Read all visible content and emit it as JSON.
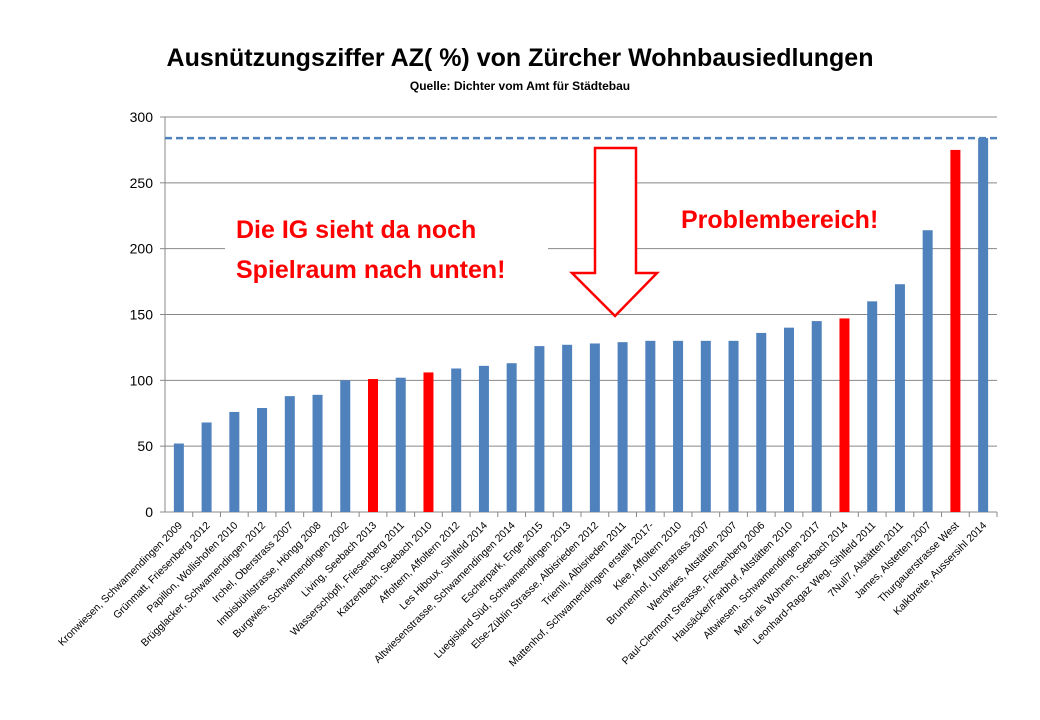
{
  "chart_data": {
    "type": "bar",
    "title": "Ausnützungsziffer AZ( %) von Zürcher Wohnbausiedlungen",
    "subtitle": "Quelle: Dichter vom Amt für Städtebau",
    "ylim": [
      0,
      300
    ],
    "yticks": [
      0,
      50,
      100,
      150,
      200,
      250,
      300
    ],
    "grid": true,
    "categories": [
      "Kronwiesen, Schwamendingen 2009",
      "Grünmatt, Friesenberg 2012",
      "Papillon, Wollishofen 2010",
      "Brügglacker, Schwamendingen 2012",
      "Irchel, Oberstrass 2007",
      "Imbisbühlstrasse, Höngg 2008",
      "Burgwies, Schwamendingen 2002",
      "Living, Seebach 2013",
      "Wasserschöpfi, Friesenberg 2011",
      "Katzenbach, Seebach 2010",
      "Affoltern, Affoltern 2012",
      "Les Hiboux, Sihlfeld 2014",
      "Altwiesenstrasse, Schwamendingen 2014",
      "Escherpark, Enge 2015",
      "Luegisland Süd, Schwamendingen 2013",
      "Else-Züblin Strasse, Albisrieden 2012",
      "Triemli, Albisrieden 2011",
      "Mattenhof, Schwamendingen erstellt 2017-",
      "Klee, Affoltern 2010",
      "Brunnenhof, Unterstrass 2007",
      "Werdwies, Altstätten 2007",
      "Paul-Clermont Sreasse, Friesenberg 2006",
      "Hausäcker/Farbhof, Altstätten 2010",
      "Altwiesen. Schwamendingen 2017",
      "Mehr als Wohnen, Seebach 2014",
      "Leonhard-Ragaz Weg, Sihlfeld 2011",
      "7Null7, Alstätten 2011",
      "James, Alstetten 2007",
      "Thurgauerstrasse West",
      "Kalkbreite, Aussersihl 2014"
    ],
    "values": [
      52,
      68,
      76,
      79,
      88,
      89,
      100,
      101,
      102,
      106,
      109,
      111,
      113,
      126,
      127,
      128,
      129,
      130,
      130,
      130,
      130,
      136,
      140,
      145,
      147,
      160,
      173,
      214,
      275,
      284
    ],
    "highlighted": [
      false,
      false,
      false,
      false,
      false,
      false,
      false,
      true,
      false,
      true,
      false,
      false,
      false,
      false,
      false,
      false,
      false,
      false,
      false,
      false,
      false,
      false,
      false,
      false,
      true,
      false,
      false,
      false,
      true,
      false
    ],
    "reference_line": 284,
    "colors": {
      "bar": "#4f81bd",
      "highlight": "#ff0000",
      "reference": "#4f81bd",
      "annotation": "#ff0000"
    },
    "annotations": {
      "left_line1": "Die IG sieht da noch",
      "left_line2": "Spielraum nach unten!",
      "right": "Problembereich!",
      "arrow": "down-arrow"
    }
  }
}
